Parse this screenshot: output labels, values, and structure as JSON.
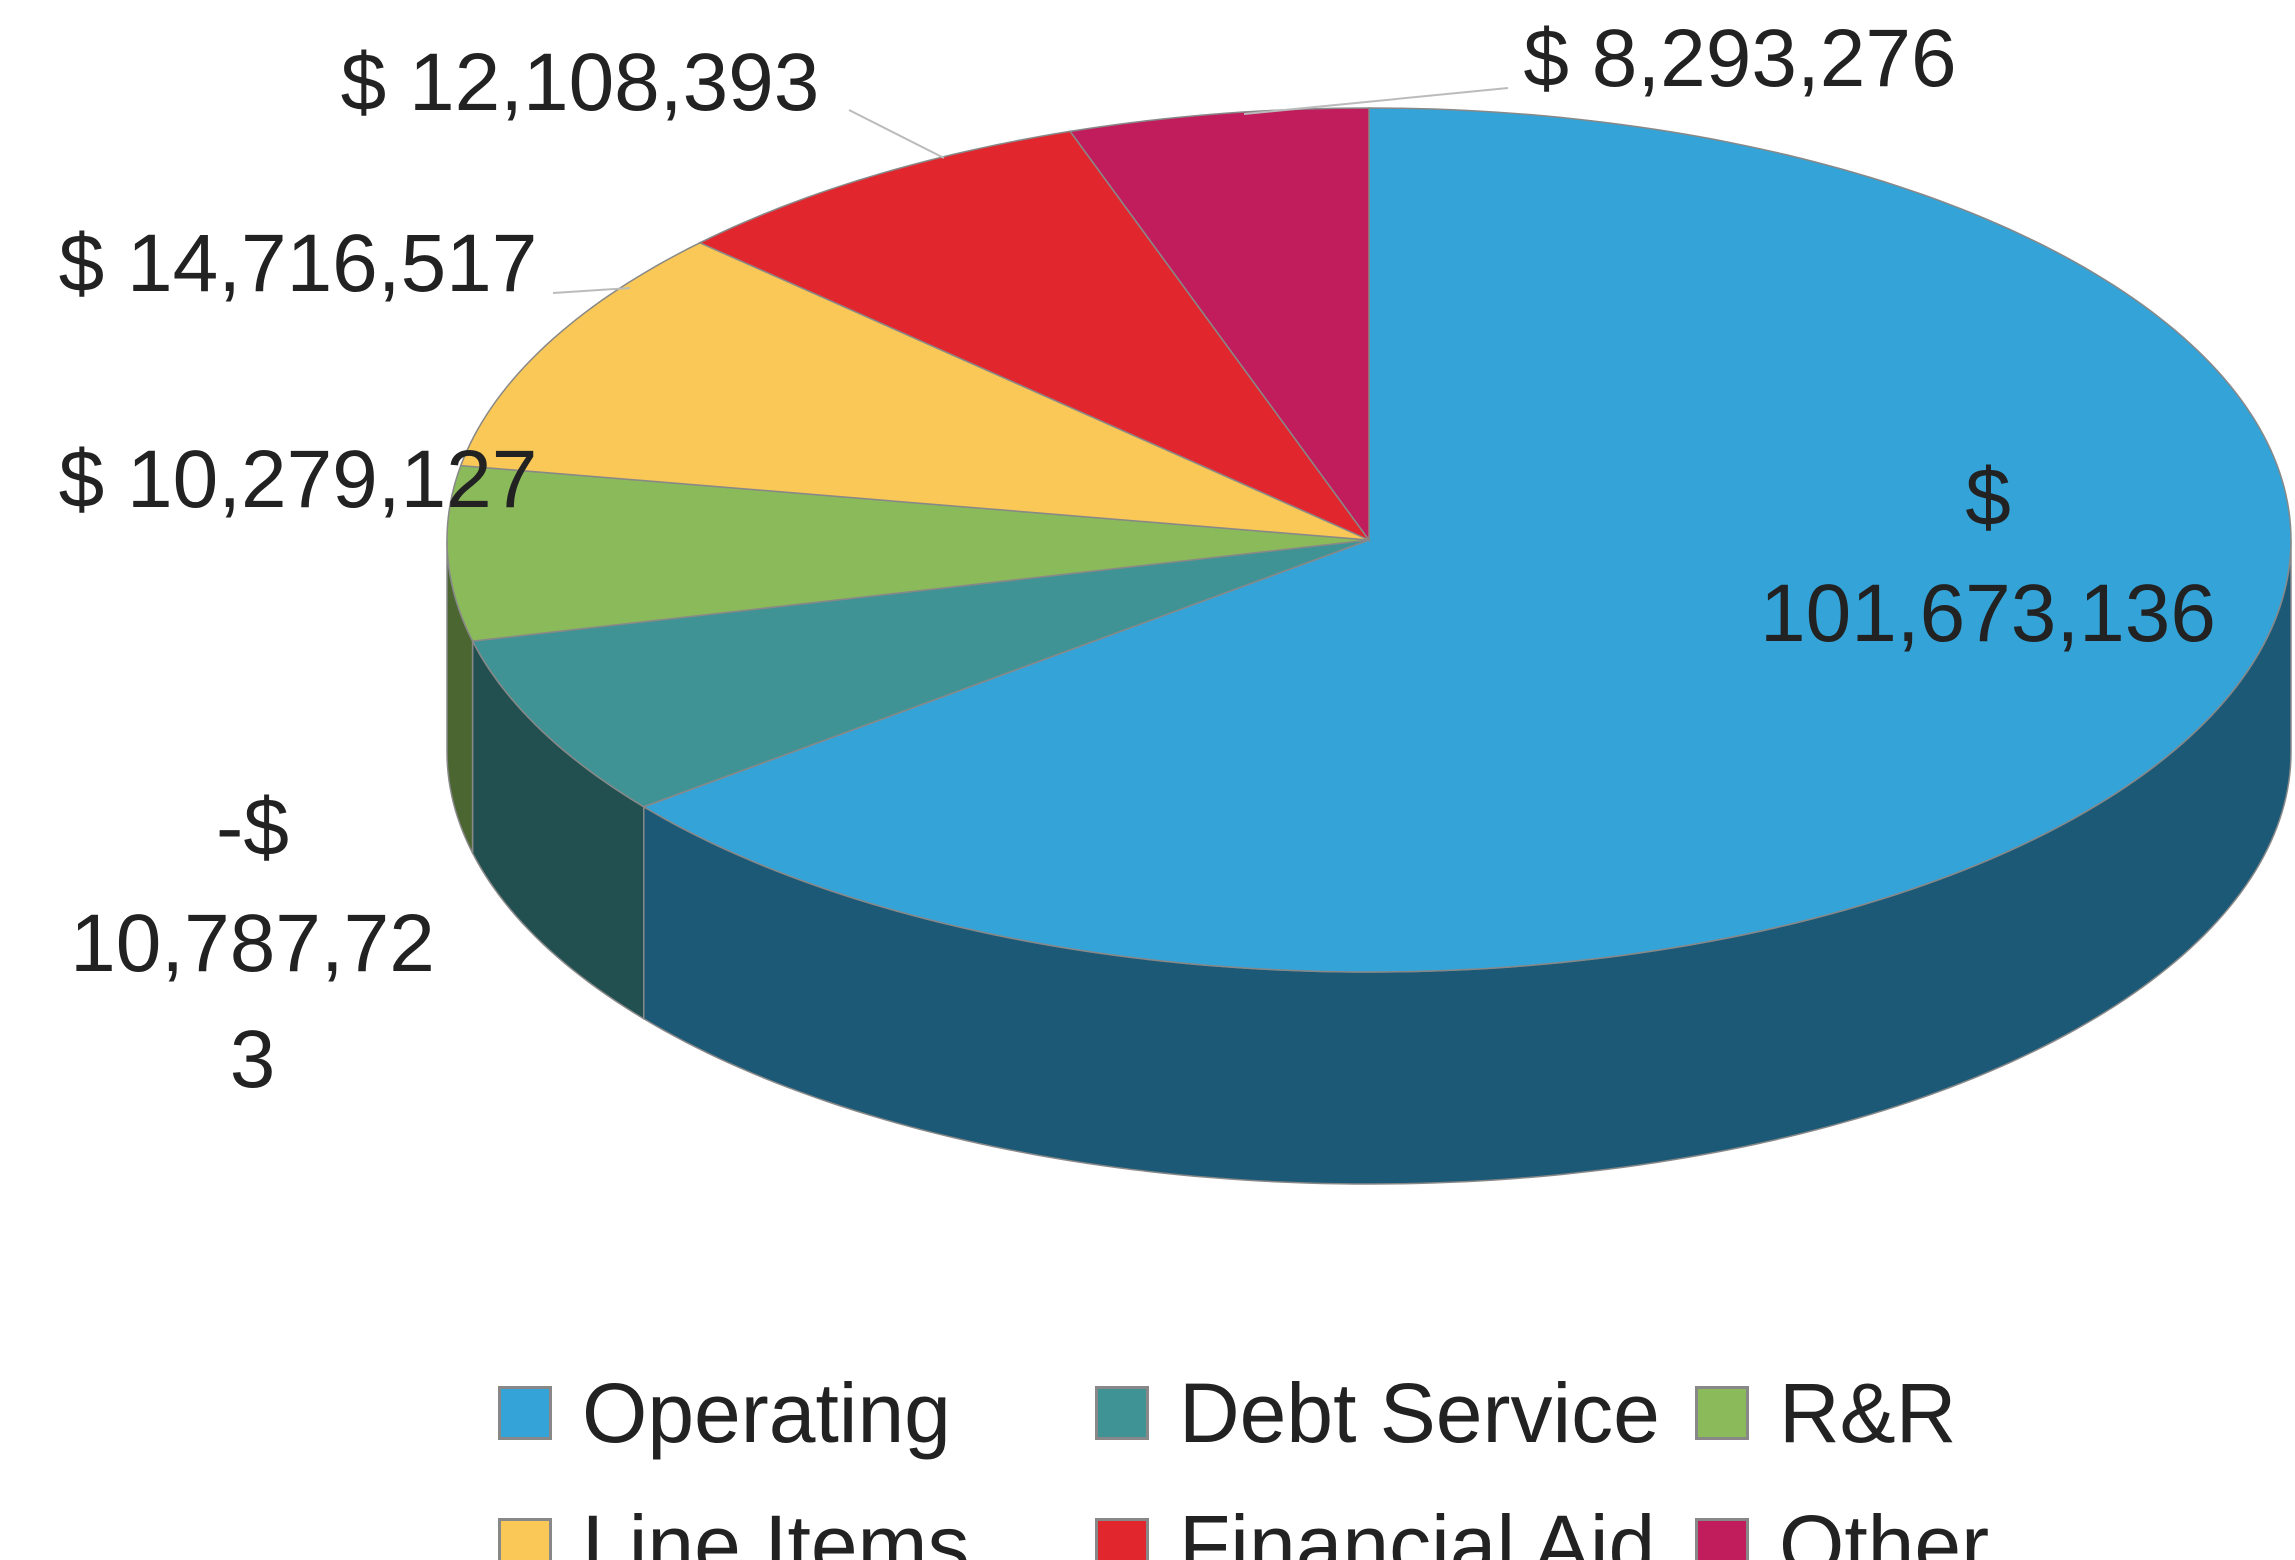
{
  "chart_data": {
    "type": "pie",
    "categories": [
      "Operating",
      "Debt Service",
      "R&R",
      "Line Items",
      "Financial Aid",
      "Other"
    ],
    "values": [
      101673136,
      -10787723,
      10279127,
      14716517,
      12108393,
      8293276
    ],
    "value_labels": [
      "$ 101,673,136",
      "-$ 10,787,723",
      "$ 10,279,127",
      "$ 14,716,517",
      "$ 12,108,393",
      "$ 8,293,276"
    ],
    "colors": [
      "#33a3d8",
      "#3f9395",
      "#8aba5a",
      "#f9c856",
      "#e1272d",
      "#c11d5d"
    ],
    "legend": "bottom"
  }
}
